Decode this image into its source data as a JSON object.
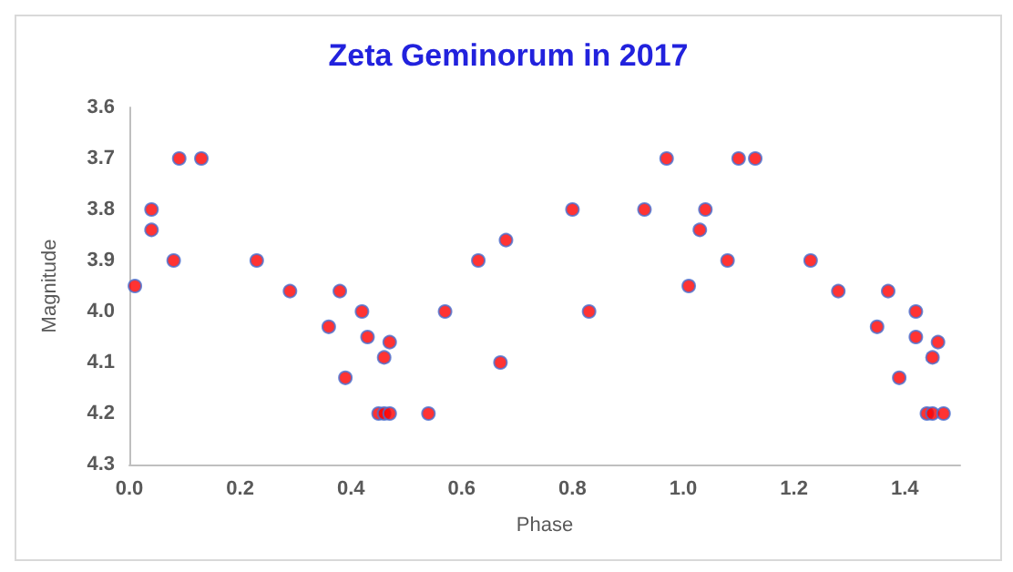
{
  "chart_data": {
    "type": "scatter",
    "title": "Zeta Geminorum in 2017",
    "xlabel": "Phase",
    "ylabel": "Magnitude",
    "x": [
      0.01,
      0.04,
      0.04,
      0.08,
      0.09,
      0.13,
      0.23,
      0.29,
      0.36,
      0.38,
      0.39,
      0.42,
      0.43,
      0.46,
      0.47,
      0.45,
      0.46,
      0.47,
      0.54,
      0.57,
      0.63,
      0.67,
      0.68,
      0.8,
      0.83,
      0.93,
      0.97,
      1.01,
      1.03,
      1.04,
      1.08,
      1.1,
      1.13,
      1.23,
      1.28,
      1.35,
      1.37,
      1.39,
      1.42,
      1.42,
      1.46,
      1.45,
      1.44,
      1.45,
      1.47
    ],
    "series": [
      {
        "color": "#ff0000",
        "values": [
          3.95,
          3.84,
          3.8,
          3.9,
          3.7,
          3.7,
          3.9,
          3.96,
          4.03,
          3.96,
          4.13,
          4.0,
          4.05,
          4.09,
          4.06,
          4.2,
          4.2,
          4.2,
          4.2,
          4.0,
          3.9,
          4.1,
          3.86,
          3.8,
          4.0,
          3.8,
          3.7,
          3.95,
          3.84,
          3.8,
          3.9,
          3.7,
          3.7,
          3.9,
          3.96,
          4.03,
          3.96,
          4.13,
          4.0,
          4.05,
          4.06,
          4.09,
          4.2,
          4.2,
          4.2
        ]
      }
    ],
    "xlim": [
      0,
      1.5
    ],
    "xticks": [
      {
        "value": 0,
        "label": "0.0"
      },
      0.2,
      0.4,
      0.6,
      0.8,
      {
        "value": 1,
        "label": "1.0"
      },
      1.2,
      1.4
    ],
    "ylim": [
      4.3,
      3.6
    ],
    "yticks": [
      3.6,
      3.7,
      3.8,
      3.9,
      {
        "value": 4,
        "label": "4.0"
      },
      4.1,
      4.2,
      4.3
    ],
    "grid": false,
    "marker": "circle"
  }
}
